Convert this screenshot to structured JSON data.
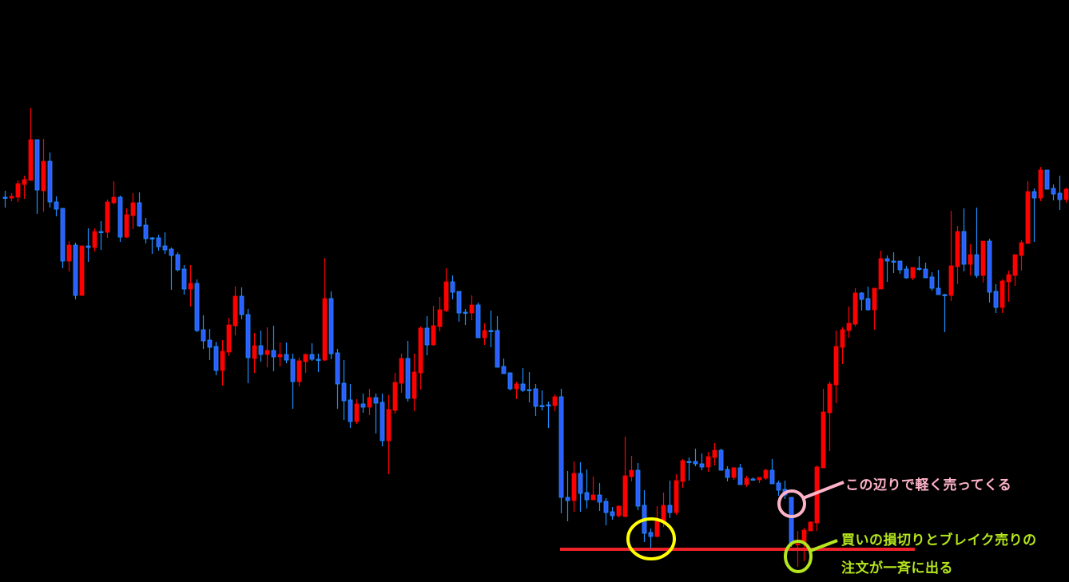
{
  "chart_data": {
    "type": "candlestick",
    "title": "",
    "xlabel": "",
    "ylabel": "",
    "price_units": "relative (no price axis shown)",
    "grid": false,
    "candle_format": [
      "open",
      "high",
      "low",
      "close"
    ],
    "colors": {
      "bullish": "#ff0000",
      "bearish_fill": "#2f5cff",
      "bearish_border": "#1e90ff",
      "background": "#000000"
    },
    "candles": [
      [
        482,
        490,
        469,
        482
      ],
      [
        481,
        487,
        477,
        483
      ],
      [
        482,
        503,
        476,
        499
      ],
      [
        498,
        509,
        480,
        504
      ],
      [
        503,
        594,
        503,
        554
      ],
      [
        554,
        554,
        461,
        491
      ],
      [
        490,
        555,
        464,
        527
      ],
      [
        527,
        538,
        469,
        476
      ],
      [
        476,
        483,
        458,
        467
      ],
      [
        468,
        468,
        393,
        402
      ],
      [
        402,
        427,
        389,
        422
      ],
      [
        422,
        425,
        354,
        359
      ],
      [
        359,
        421,
        359,
        421
      ],
      [
        421,
        443,
        401,
        419
      ],
      [
        419,
        443,
        414,
        439
      ],
      [
        439,
        452,
        416,
        439
      ],
      [
        438,
        479,
        431,
        476
      ],
      [
        475,
        502,
        473,
        482
      ],
      [
        482,
        484,
        426,
        432
      ],
      [
        432,
        468,
        431,
        460
      ],
      [
        459,
        487,
        442,
        475
      ],
      [
        475,
        488,
        445,
        446
      ],
      [
        447,
        456,
        424,
        430
      ],
      [
        431,
        432,
        411,
        430
      ],
      [
        431,
        435,
        415,
        420
      ],
      [
        421,
        438,
        411,
        416
      ],
      [
        417,
        419,
        366,
        409
      ],
      [
        410,
        413,
        389,
        391
      ],
      [
        392,
        397,
        360,
        367
      ],
      [
        367,
        397,
        345,
        374
      ],
      [
        374,
        379,
        313,
        315
      ],
      [
        316,
        334,
        292,
        302
      ],
      [
        303,
        317,
        278,
        294
      ],
      [
        295,
        301,
        259,
        265
      ],
      [
        265,
        303,
        246,
        289
      ],
      [
        288,
        331,
        283,
        322
      ],
      [
        321,
        370,
        309,
        358
      ],
      [
        358,
        369,
        329,
        335
      ],
      [
        335,
        342,
        249,
        281
      ],
      [
        280,
        312,
        262,
        296
      ],
      [
        296,
        315,
        276,
        285
      ],
      [
        285,
        319,
        269,
        290
      ],
      [
        290,
        321,
        264,
        282
      ],
      [
        282,
        300,
        270,
        285
      ],
      [
        285,
        300,
        274,
        278
      ],
      [
        279,
        286,
        217,
        251
      ],
      [
        251,
        281,
        245,
        277
      ],
      [
        276,
        286,
        262,
        285
      ],
      [
        285,
        299,
        277,
        279
      ],
      [
        279,
        286,
        263,
        279
      ],
      [
        278,
        406,
        277,
        355
      ],
      [
        355,
        364,
        279,
        286
      ],
      [
        287,
        292,
        217,
        248
      ],
      [
        249,
        278,
        203,
        227
      ],
      [
        228,
        248,
        193,
        201
      ],
      [
        201,
        229,
        198,
        223
      ],
      [
        223,
        236,
        212,
        219
      ],
      [
        219,
        242,
        209,
        231
      ],
      [
        231,
        236,
        186,
        224
      ],
      [
        225,
        236,
        170,
        177
      ],
      [
        177,
        234,
        135,
        216
      ],
      [
        215,
        262,
        211,
        250
      ],
      [
        249,
        286,
        237,
        280
      ],
      [
        280,
        302,
        226,
        230
      ],
      [
        230,
        286,
        214,
        263
      ],
      [
        262,
        320,
        241,
        318
      ],
      [
        318,
        333,
        284,
        297
      ],
      [
        297,
        346,
        296,
        321
      ],
      [
        320,
        357,
        314,
        341
      ],
      [
        340,
        393,
        338,
        376
      ],
      [
        376,
        384,
        354,
        363
      ],
      [
        364,
        364,
        326,
        337
      ],
      [
        338,
        342,
        322,
        338
      ],
      [
        337,
        359,
        328,
        347
      ],
      [
        347,
        350,
        306,
        306
      ],
      [
        306,
        324,
        297,
        315
      ],
      [
        315,
        340,
        294,
        315
      ],
      [
        315,
        333,
        269,
        269
      ],
      [
        270,
        280,
        261,
        261
      ],
      [
        262,
        262,
        240,
        242
      ],
      [
        242,
        251,
        229,
        248
      ],
      [
        248,
        268,
        238,
        240
      ],
      [
        241,
        263,
        225,
        241
      ],
      [
        242,
        248,
        208,
        220
      ],
      [
        221,
        240,
        215,
        221
      ],
      [
        222,
        226,
        193,
        222
      ],
      [
        221,
        235,
        214,
        232
      ],
      [
        232,
        242,
        86,
        106
      ],
      [
        106,
        139,
        76,
        102
      ],
      [
        102,
        151,
        88,
        136
      ],
      [
        136,
        150,
        88,
        111
      ],
      [
        112,
        141,
        92,
        103
      ],
      [
        103,
        132,
        103,
        109
      ],
      [
        109,
        124,
        89,
        100
      ],
      [
        101,
        105,
        71,
        87
      ],
      [
        88,
        94,
        78,
        83
      ],
      [
        83,
        96,
        81,
        95
      ],
      [
        82,
        182,
        81,
        133
      ],
      [
        132,
        158,
        126,
        140
      ],
      [
        140,
        149,
        90,
        95
      ],
      [
        96,
        115,
        50,
        61
      ],
      [
        62,
        67,
        43,
        57
      ],
      [
        57,
        95,
        56,
        76
      ],
      [
        76,
        112,
        69,
        96
      ],
      [
        96,
        127,
        80,
        87
      ],
      [
        87,
        135,
        84,
        127
      ],
      [
        126,
        154,
        118,
        152
      ],
      [
        151,
        156,
        127,
        151
      ],
      [
        151,
        167,
        145,
        148
      ],
      [
        148,
        161,
        140,
        144
      ],
      [
        144,
        163,
        138,
        157
      ],
      [
        156,
        174,
        146,
        165
      ],
      [
        165,
        167,
        140,
        140
      ],
      [
        141,
        145,
        126,
        131
      ],
      [
        131,
        144,
        128,
        143
      ],
      [
        143,
        148,
        122,
        122
      ],
      [
        122,
        133,
        119,
        130
      ],
      [
        129,
        131,
        127,
        129
      ],
      [
        128,
        131,
        124,
        131
      ],
      [
        130,
        142,
        128,
        140
      ],
      [
        140,
        154,
        123,
        123
      ],
      [
        124,
        127,
        108,
        115
      ],
      [
        116,
        127,
        104,
        109
      ],
      [
        106,
        106,
        44,
        49
      ],
      [
        47,
        64,
        19,
        48
      ],
      [
        50,
        68,
        26,
        65
      ],
      [
        64,
        76,
        64,
        75
      ],
      [
        74,
        146,
        64,
        144
      ],
      [
        143,
        242,
        143,
        213
      ],
      [
        212,
        251,
        164,
        248
      ],
      [
        247,
        315,
        224,
        295
      ],
      [
        294,
        319,
        273,
        316
      ],
      [
        315,
        345,
        306,
        324
      ],
      [
        323,
        368,
        320,
        362
      ],
      [
        362,
        363,
        340,
        354
      ],
      [
        355,
        370,
        340,
        341
      ],
      [
        341,
        368,
        316,
        368
      ],
      [
        367,
        415,
        367,
        405
      ],
      [
        405,
        409,
        376,
        402
      ],
      [
        402,
        413,
        387,
        402
      ],
      [
        402,
        402,
        386,
        391
      ],
      [
        392,
        396,
        380,
        381
      ],
      [
        381,
        394,
        378,
        394
      ],
      [
        393,
        408,
        390,
        393
      ],
      [
        392,
        400,
        381,
        381
      ],
      [
        382,
        388,
        365,
        368
      ],
      [
        368,
        391,
        360,
        360
      ],
      [
        360,
        361,
        313,
        360
      ],
      [
        359,
        465,
        352,
        396
      ],
      [
        395,
        446,
        373,
        439
      ],
      [
        439,
        468,
        389,
        398
      ],
      [
        398,
        423,
        384,
        410
      ],
      [
        410,
        469,
        381,
        384
      ],
      [
        384,
        427,
        375,
        427
      ],
      [
        427,
        430,
        350,
        363
      ],
      [
        364,
        373,
        337,
        344
      ],
      [
        344,
        379,
        337,
        377
      ],
      [
        376,
        390,
        351,
        385
      ],
      [
        384,
        410,
        371,
        410
      ],
      [
        409,
        428,
        390,
        425
      ],
      [
        424,
        502,
        424,
        489
      ],
      [
        489,
        493,
        426,
        481
      ],
      [
        481,
        520,
        477,
        516
      ],
      [
        516,
        516,
        492,
        492
      ],
      [
        493,
        498,
        478,
        486
      ],
      [
        487,
        509,
        466,
        479
      ],
      [
        479,
        494,
        475,
        492
      ]
    ],
    "horizontal_line": {
      "level": 41,
      "from_candle": 87,
      "to_candle": 142,
      "color": "#ee2229"
    },
    "annotations": [
      {
        "id": "light-selling",
        "text": "この辺りで軽く売ってくる",
        "color": "#ffb3c9"
      },
      {
        "id": "stop-and-break",
        "lines": [
          "買いの損切りとブレイク売りの",
          "注文が一斉に出る"
        ],
        "color": "#b5e61d"
      }
    ],
    "highlight_circles": [
      {
        "id": "prior-low",
        "color": "#ffff00"
      },
      {
        "id": "selling-zone",
        "color": "#ffb3c9"
      },
      {
        "id": "break-zone",
        "color": "#b5e61d"
      }
    ]
  }
}
